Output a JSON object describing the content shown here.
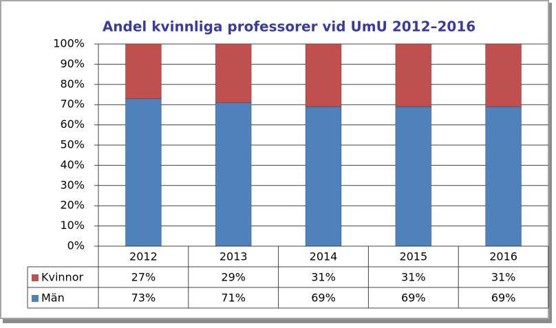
{
  "chart_data": {
    "type": "stacked_bar",
    "title": "Andel kvinnliga professorer vid UmU 2012–2016",
    "categories": [
      "2012",
      "2013",
      "2014",
      "2015",
      "2016"
    ],
    "series": [
      {
        "name": "Kvinnor",
        "color": "#c0504d",
        "values": [
          27,
          29,
          31,
          31,
          31
        ],
        "value_labels": [
          "27%",
          "29%",
          "31%",
          "31%",
          "31%"
        ]
      },
      {
        "name": "Män",
        "color": "#4f81bd",
        "values": [
          73,
          71,
          69,
          69,
          69
        ],
        "value_labels": [
          "73%",
          "71%",
          "69%",
          "69%",
          "69%"
        ]
      }
    ],
    "ylim": [
      0,
      100
    ],
    "yticks": [
      {
        "value": 0,
        "label": "0%"
      },
      {
        "value": 10,
        "label": "10%"
      },
      {
        "value": 20,
        "label": "20%"
      },
      {
        "value": 30,
        "label": "30%"
      },
      {
        "value": 40,
        "label": "40%"
      },
      {
        "value": 50,
        "label": "50%"
      },
      {
        "value": 60,
        "label": "60%"
      },
      {
        "value": 70,
        "label": "70%"
      },
      {
        "value": 80,
        "label": "80%"
      },
      {
        "value": 90,
        "label": "90%"
      },
      {
        "value": 100,
        "label": "100%"
      }
    ],
    "grid": true
  }
}
